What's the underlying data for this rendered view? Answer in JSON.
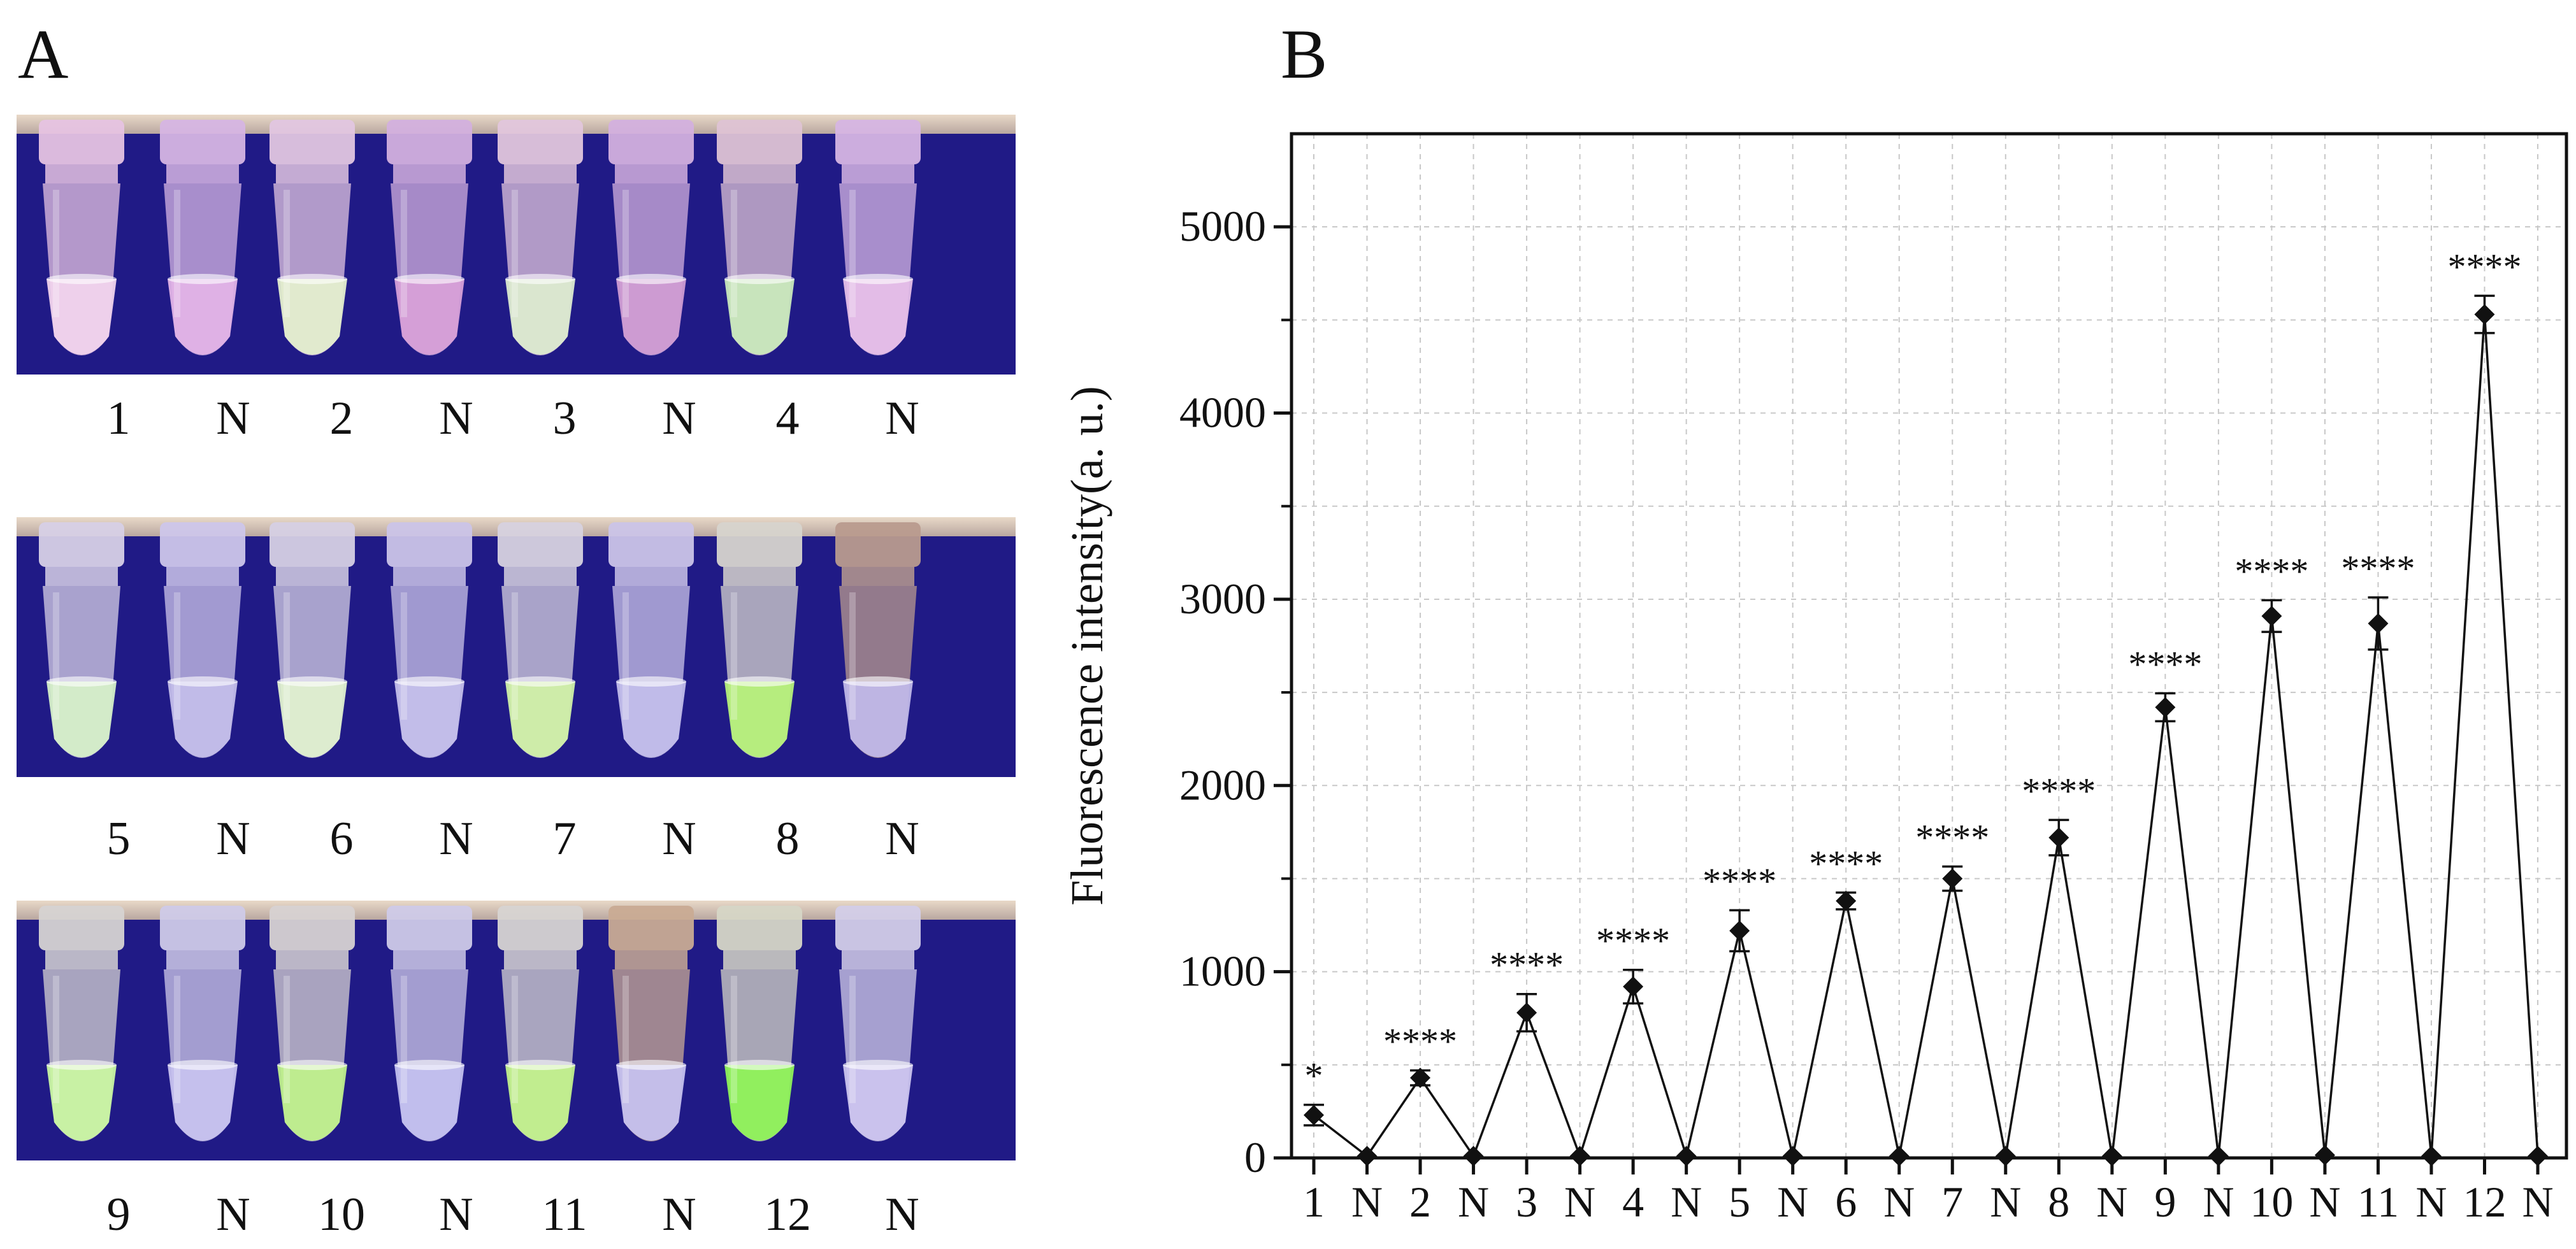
{
  "panels": {
    "a": "A",
    "b": "B"
  },
  "photo_rows": [
    {
      "labels": [
        "1",
        "N",
        "2",
        "N",
        "3",
        "N",
        "4",
        "N"
      ],
      "liquid_colors": [
        "#f1d3ec",
        "#e2b3e6",
        "#e4eecd",
        "#d7a0d8",
        "#dcead0",
        "#cf9cd3",
        "#c9e8bc",
        "#e6bfe8"
      ],
      "tube_colors": [
        "#e6c3e2",
        "#d6b5e3",
        "#e2c6e0",
        "#d3b0de",
        "#e2c6dc",
        "#d3b0de",
        "#dec3d4",
        "#d6b5e3"
      ]
    },
    {
      "labels": [
        "5",
        "N",
        "6",
        "N",
        "7",
        "N",
        "8",
        "N"
      ],
      "liquid_colors": [
        "#d5efc8",
        "#c3bde9",
        "#dff0cf",
        "#c4bfea",
        "#d0f0a8",
        "#c2bdea",
        "#b6f07a",
        "#c0b8e8"
      ],
      "tube_colors": [
        "#d7d0e6",
        "#cdc6ea",
        "#d6d0e4",
        "#cbc4e8",
        "#d7d2df",
        "#cbc4e8",
        "#d7d4cd",
        "#b99b8e"
      ]
    },
    {
      "labels": [
        "9",
        "N",
        "10",
        "N",
        "11",
        "N",
        "12",
        "N"
      ],
      "liquid_colors": [
        "#c9f5a2",
        "#c7c2ee",
        "#bff08c",
        "#c3c0ee",
        "#c2f08c",
        "#c6c1ee",
        "#8ff25a",
        "#cbc4ee"
      ],
      "tube_colors": [
        "#d6d3d2",
        "#cfcae8",
        "#d7d2d2",
        "#cfcae8",
        "#d7d4d2",
        "#c9ab94",
        "#d6d6c6",
        "#d3cee8"
      ]
    }
  ],
  "chart_data": {
    "type": "line",
    "categories": [
      "1",
      "N",
      "2",
      "N",
      "3",
      "N",
      "4",
      "N",
      "5",
      "N",
      "6",
      "N",
      "7",
      "N",
      "8",
      "N",
      "9",
      "N",
      "10",
      "N",
      "11",
      "N",
      "12",
      "N"
    ],
    "values": [
      230,
      10,
      430,
      10,
      780,
      10,
      920,
      10,
      1220,
      10,
      1380,
      10,
      1500,
      10,
      1720,
      10,
      2420,
      10,
      2910,
      15,
      2870,
      10,
      4530,
      10
    ],
    "errors": [
      55,
      8,
      40,
      8,
      100,
      8,
      90,
      8,
      110,
      8,
      45,
      8,
      65,
      8,
      95,
      8,
      75,
      8,
      85,
      8,
      140,
      8,
      100,
      8
    ],
    "significance": [
      "*",
      "",
      "****",
      "",
      "****",
      "",
      "****",
      "",
      "****",
      "",
      "****",
      "",
      "****",
      "",
      "****",
      "",
      "****",
      "",
      "****",
      "",
      "****",
      "",
      "****",
      ""
    ],
    "ylabel": "Fluorescence intensity(a. u.)",
    "xlabel": "",
    "ylim": [
      0,
      5500
    ],
    "yticks": [
      "0",
      "1000",
      "2000",
      "3000",
      "4000",
      "5000"
    ],
    "grid": true,
    "marker": "diamond"
  }
}
